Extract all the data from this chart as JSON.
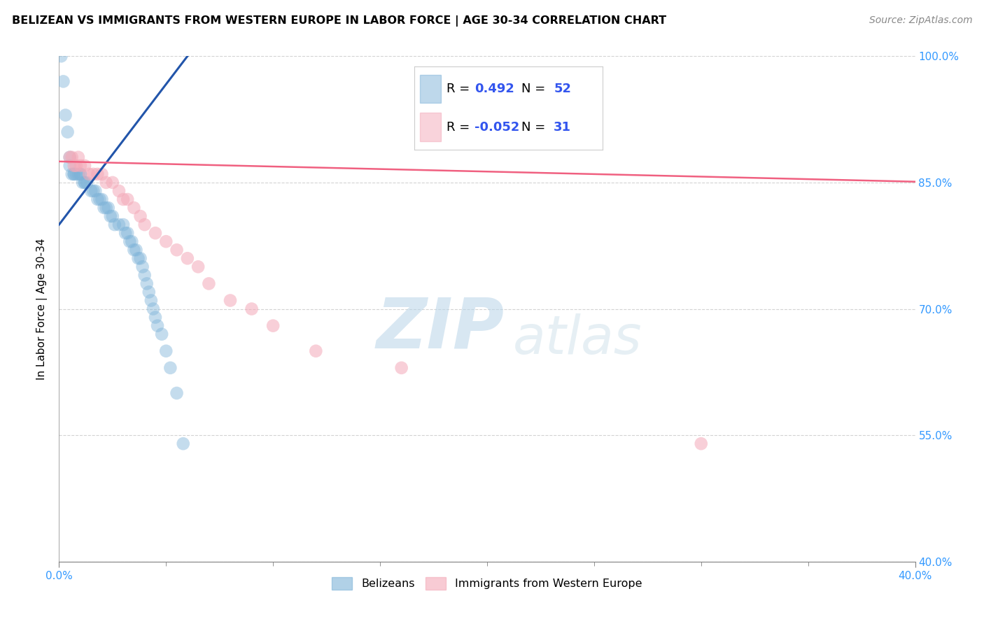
{
  "title": "BELIZEAN VS IMMIGRANTS FROM WESTERN EUROPE IN LABOR FORCE | AGE 30-34 CORRELATION CHART",
  "source": "Source: ZipAtlas.com",
  "ylabel_label": "In Labor Force | Age 30-34",
  "xmin": 0.0,
  "xmax": 0.4,
  "ymin": 0.4,
  "ymax": 1.0,
  "ytick_labels": [
    "40.0%",
    "55.0%",
    "70.0%",
    "85.0%",
    "100.0%"
  ],
  "ytick_values": [
    0.4,
    0.55,
    0.7,
    0.85,
    1.0
  ],
  "xtick_labels_ends": [
    "0.0%",
    "40.0%"
  ],
  "xtick_values_ends": [
    0.0,
    0.4
  ],
  "xtick_minor_values": [
    0.05,
    0.1,
    0.15,
    0.2,
    0.25,
    0.3,
    0.35
  ],
  "blue_color": "#7EB3D8",
  "pink_color": "#F4A9B8",
  "blue_line_color": "#2255AA",
  "pink_line_color": "#F06080",
  "r_blue": 0.492,
  "n_blue": 52,
  "r_pink": -0.052,
  "n_pink": 31,
  "watermark_zip": "ZIP",
  "watermark_atlas": "atlas",
  "blue_scatter_x": [
    0.001,
    0.001,
    0.002,
    0.003,
    0.003,
    0.004,
    0.004,
    0.004,
    0.005,
    0.005,
    0.005,
    0.005,
    0.006,
    0.006,
    0.006,
    0.006,
    0.006,
    0.007,
    0.007,
    0.007,
    0.007,
    0.008,
    0.008,
    0.008,
    0.009,
    0.009,
    0.009,
    0.01,
    0.01,
    0.01,
    0.011,
    0.011,
    0.012,
    0.012,
    0.013,
    0.013,
    0.014,
    0.015,
    0.015,
    0.016,
    0.017,
    0.018,
    0.019,
    0.02,
    0.021,
    0.022,
    0.023,
    0.024,
    0.025,
    0.026,
    0.028,
    0.03
  ],
  "blue_scatter_y": [
    1.0,
    0.96,
    0.93,
    0.9,
    0.88,
    0.87,
    0.87,
    0.86,
    0.86,
    0.86,
    0.86,
    0.86,
    0.86,
    0.86,
    0.86,
    0.85,
    0.85,
    0.85,
    0.85,
    0.84,
    0.84,
    0.84,
    0.84,
    0.84,
    0.83,
    0.83,
    0.83,
    0.83,
    0.83,
    0.82,
    0.82,
    0.82,
    0.81,
    0.81,
    0.8,
    0.8,
    0.8,
    0.79,
    0.78,
    0.78,
    0.77,
    0.76,
    0.75,
    0.74,
    0.73,
    0.72,
    0.71,
    0.7,
    0.69,
    0.68,
    0.66,
    0.54
  ],
  "blue_scatter_x2": [
    0.001,
    0.002,
    0.003,
    0.004,
    0.005,
    0.005,
    0.006,
    0.007,
    0.007,
    0.008,
    0.009,
    0.01,
    0.01,
    0.011,
    0.012,
    0.012,
    0.013,
    0.015,
    0.016,
    0.017,
    0.018,
    0.019,
    0.02,
    0.021,
    0.022,
    0.023,
    0.024,
    0.025,
    0.026,
    0.028,
    0.03,
    0.031,
    0.032,
    0.033,
    0.034,
    0.035,
    0.036,
    0.037,
    0.038,
    0.039,
    0.04,
    0.041,
    0.042,
    0.043,
    0.044,
    0.045,
    0.046,
    0.048,
    0.05,
    0.052,
    0.055,
    0.058
  ],
  "blue_scatter_y2": [
    1.0,
    0.97,
    0.93,
    0.91,
    0.88,
    0.87,
    0.86,
    0.86,
    0.86,
    0.86,
    0.86,
    0.86,
    0.86,
    0.85,
    0.85,
    0.85,
    0.85,
    0.84,
    0.84,
    0.84,
    0.83,
    0.83,
    0.83,
    0.82,
    0.82,
    0.82,
    0.81,
    0.81,
    0.8,
    0.8,
    0.8,
    0.79,
    0.79,
    0.78,
    0.78,
    0.77,
    0.77,
    0.76,
    0.76,
    0.75,
    0.74,
    0.73,
    0.72,
    0.71,
    0.7,
    0.69,
    0.68,
    0.67,
    0.65,
    0.63,
    0.6,
    0.54
  ],
  "pink_scatter_x": [
    0.005,
    0.006,
    0.007,
    0.008,
    0.009,
    0.01,
    0.012,
    0.014,
    0.016,
    0.018,
    0.02,
    0.022,
    0.025,
    0.028,
    0.03,
    0.032,
    0.035,
    0.038,
    0.04,
    0.045,
    0.05,
    0.055,
    0.06,
    0.065,
    0.07,
    0.08,
    0.09,
    0.1,
    0.12,
    0.16,
    0.3
  ],
  "pink_scatter_y": [
    0.88,
    0.88,
    0.87,
    0.87,
    0.88,
    0.87,
    0.87,
    0.86,
    0.86,
    0.86,
    0.86,
    0.85,
    0.85,
    0.84,
    0.83,
    0.83,
    0.82,
    0.81,
    0.8,
    0.79,
    0.78,
    0.77,
    0.76,
    0.75,
    0.73,
    0.71,
    0.7,
    0.68,
    0.65,
    0.63,
    0.54
  ],
  "blue_trend_x": [
    0.0,
    0.06
  ],
  "blue_trend_y": [
    0.8,
    1.0
  ],
  "pink_trend_x": [
    0.0,
    0.4
  ],
  "pink_trend_y": [
    0.875,
    0.851
  ]
}
